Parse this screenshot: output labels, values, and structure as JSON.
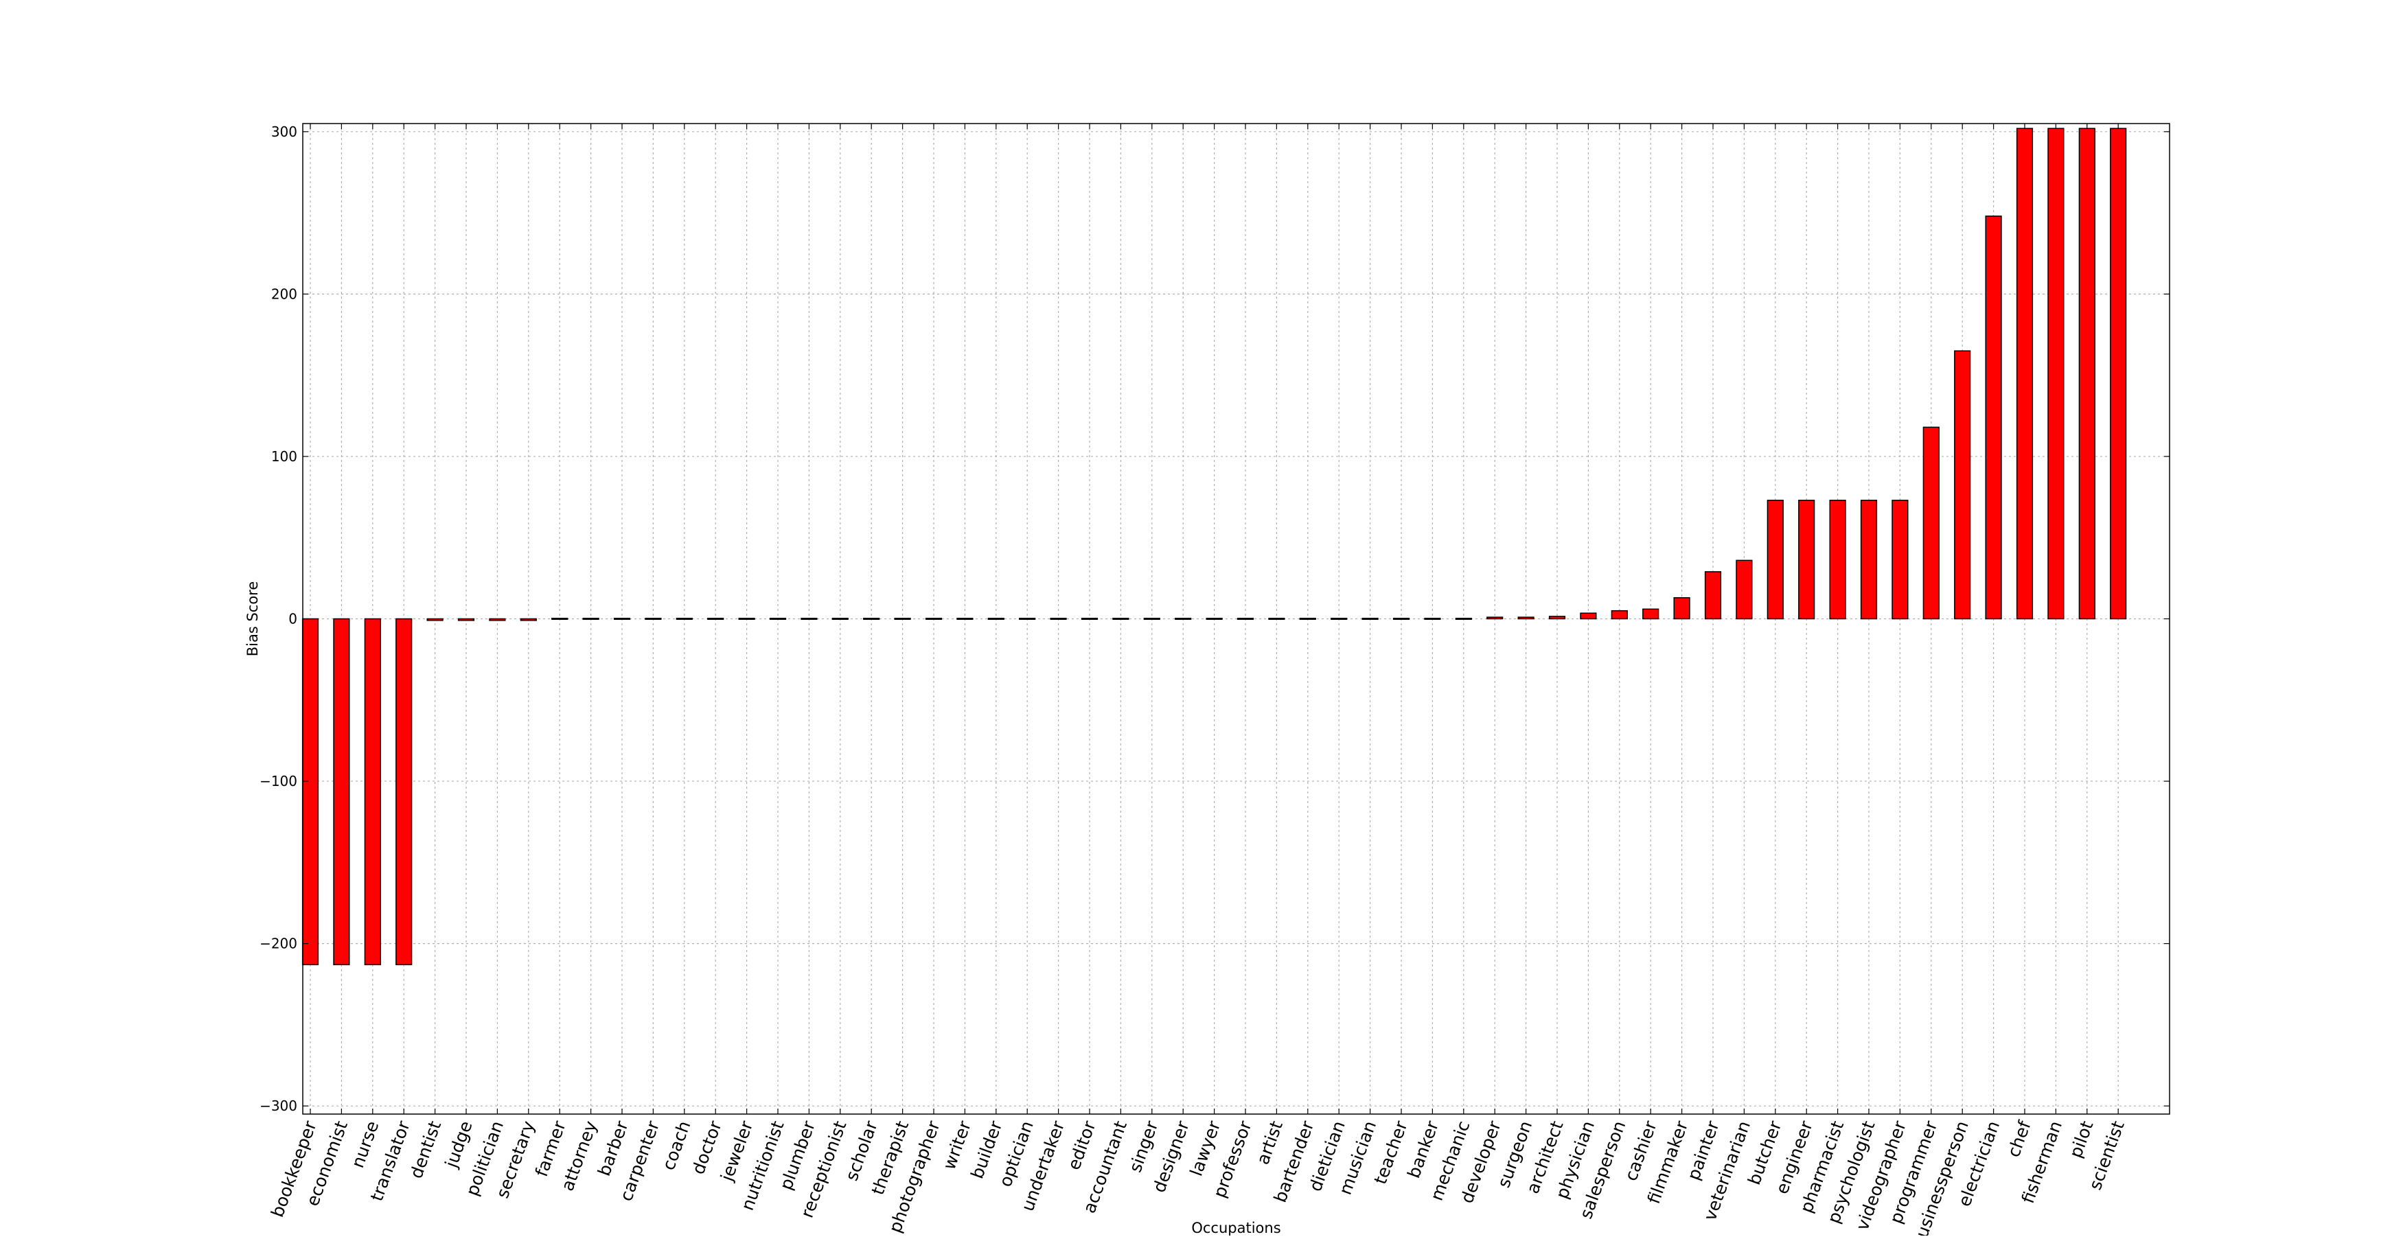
{
  "chart_data": {
    "type": "bar",
    "title": "",
    "xlabel": "Occupations",
    "ylabel": "Bias Score",
    "ylim": [
      -305,
      305
    ],
    "yticks": [
      300,
      200,
      100,
      0,
      -100,
      -200,
      -300
    ],
    "ytick_labels": [
      "300",
      "200",
      "100",
      "0",
      "−100",
      "−200",
      "−300"
    ],
    "grid": true,
    "legend": "none",
    "bar_color": "#ff0000",
    "bar_edge_color": "#000000",
    "grid_color": "#b0b0b0",
    "categories": [
      "bookkeeper",
      "economist",
      "nurse",
      "translator",
      "dentist",
      "judge",
      "politician",
      "secretary",
      "farmer",
      "attorney",
      "barber",
      "carpenter",
      "coach",
      "doctor",
      "jeweler",
      "nutritionist",
      "plumber",
      "receptionist",
      "scholar",
      "therapist",
      "photographer",
      "writer",
      "builder",
      "optician",
      "undertaker",
      "editor",
      "accountant",
      "singer",
      "designer",
      "lawyer",
      "professor",
      "artist",
      "bartender",
      "dietician",
      "musician",
      "teacher",
      "banker",
      "mechanic",
      "developer",
      "surgeon",
      "architect",
      "physician",
      "salesperson",
      "cashier",
      "filmmaker",
      "painter",
      "veterinarian",
      "butcher",
      "engineer",
      "pharmacist",
      "psychologist",
      "videographer",
      "programmer",
      "businessperson",
      "electrician",
      "chef",
      "fisherman",
      "pilot",
      "scientist"
    ],
    "values": [
      -213,
      -213,
      -213,
      -213,
      -1,
      -1,
      -1,
      -1,
      -0.3,
      -0.3,
      -0.3,
      -0.3,
      -0.3,
      -0.3,
      -0.3,
      -0.3,
      -0.3,
      -0.3,
      -0.3,
      -0.3,
      -0.3,
      -0.3,
      -0.3,
      -0.3,
      -0.3,
      -0.3,
      -0.3,
      -0.3,
      -0.3,
      -0.3,
      -0.3,
      0.5,
      0.5,
      0.5,
      0.5,
      0.5,
      0.5,
      0.5,
      1,
      1,
      1.5,
      3.5,
      5,
      6,
      13,
      29,
      36,
      73,
      73,
      73,
      73,
      73,
      118,
      165,
      248,
      302,
      302,
      302,
      302
    ]
  }
}
